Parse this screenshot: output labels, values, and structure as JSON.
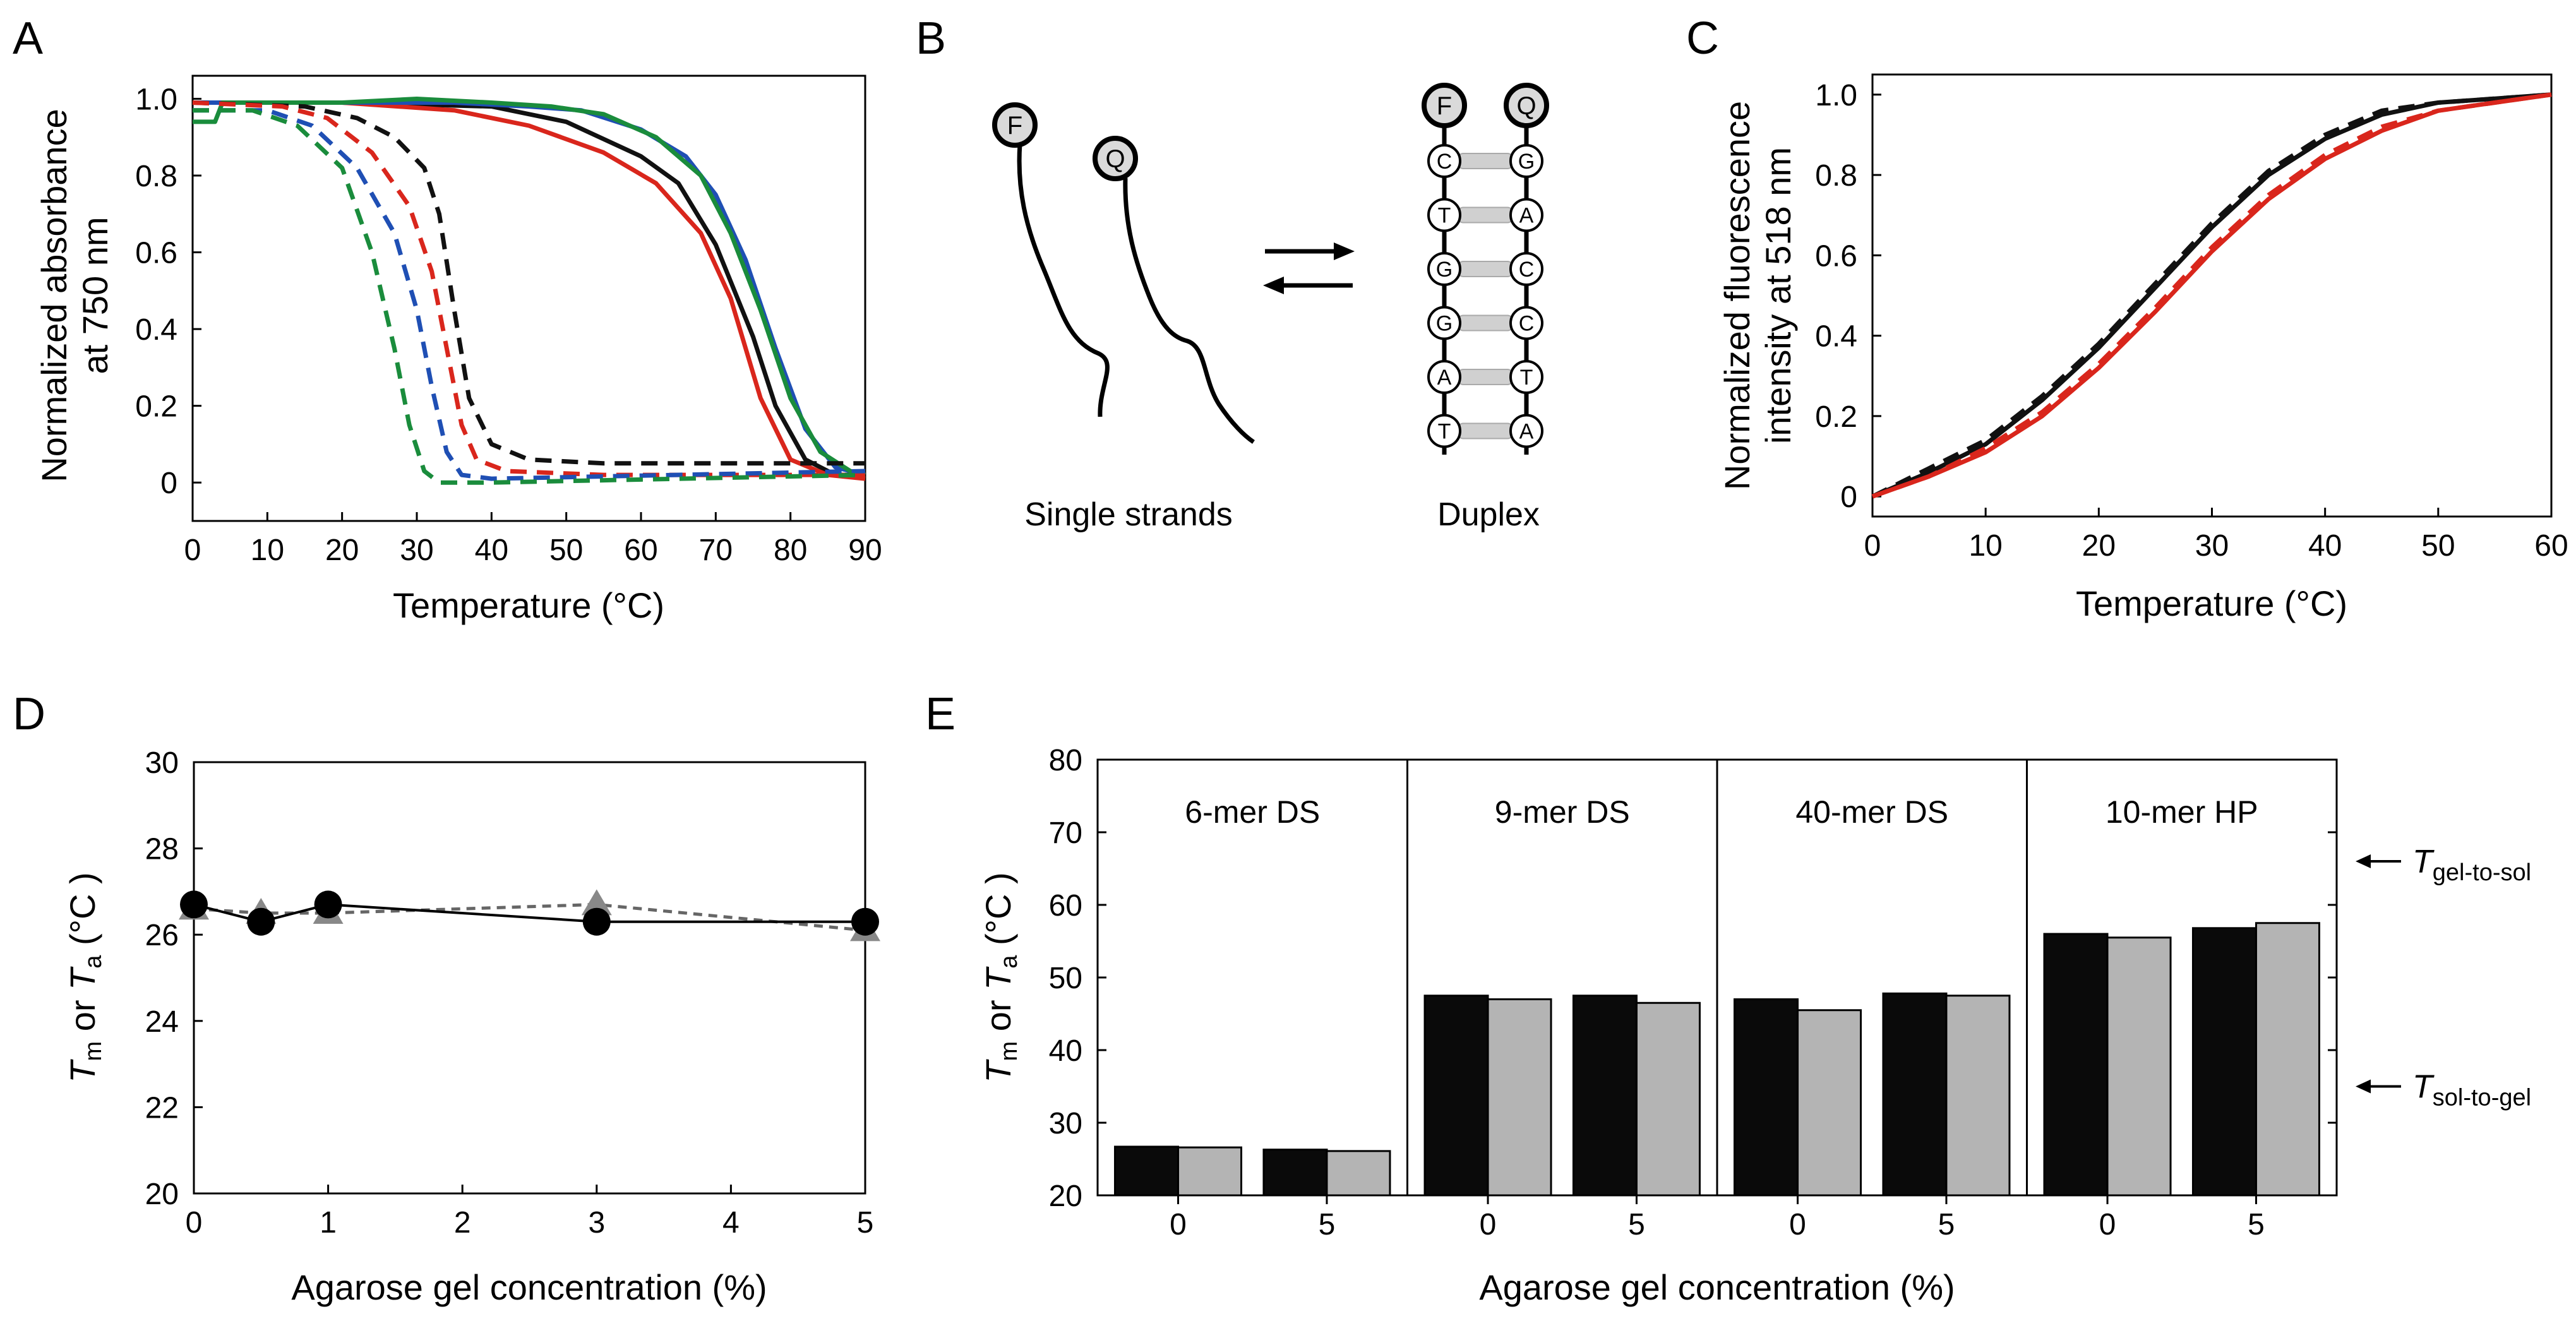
{
  "chart_data": [
    {
      "panel": "A",
      "type": "line",
      "xlabel": "Temperature (°C)",
      "ylabel": [
        "Normalized absorbance",
        "at 750 nm"
      ],
      "xlim": [
        0,
        90
      ],
      "ylim": [
        -0.1,
        1.06
      ],
      "xticks": [
        0,
        10,
        20,
        30,
        40,
        50,
        60,
        70,
        80,
        90
      ],
      "yticks": [
        0,
        0.2,
        0.4,
        0.6,
        0.8,
        1.0
      ],
      "ytick_labels": [
        "0",
        "0.2",
        "0.4",
        "0.6",
        "0.8",
        "1.0"
      ],
      "series": [
        {
          "name": "black solid",
          "color": "#111111",
          "dash": false,
          "points": [
            [
              0,
              0.99
            ],
            [
              20,
              0.99
            ],
            [
              40,
              0.98
            ],
            [
              50,
              0.94
            ],
            [
              60,
              0.85
            ],
            [
              65,
              0.78
            ],
            [
              70,
              0.62
            ],
            [
              75,
              0.38
            ],
            [
              78,
              0.2
            ],
            [
              82,
              0.06
            ],
            [
              86,
              0.02
            ],
            [
              90,
              0.02
            ]
          ]
        },
        {
          "name": "red solid",
          "color": "#d9261c",
          "dash": false,
          "points": [
            [
              0,
              0.99
            ],
            [
              20,
              0.99
            ],
            [
              35,
              0.97
            ],
            [
              45,
              0.93
            ],
            [
              55,
              0.86
            ],
            [
              62,
              0.78
            ],
            [
              68,
              0.65
            ],
            [
              72,
              0.48
            ],
            [
              76,
              0.22
            ],
            [
              80,
              0.06
            ],
            [
              85,
              0.02
            ],
            [
              90,
              0.01
            ]
          ]
        },
        {
          "name": "blue solid",
          "color": "#1f4fb4",
          "dash": false,
          "points": [
            [
              0,
              0.99
            ],
            [
              20,
              0.99
            ],
            [
              35,
              0.99
            ],
            [
              45,
              0.98
            ],
            [
              52,
              0.97
            ],
            [
              60,
              0.92
            ],
            [
              66,
              0.85
            ],
            [
              70,
              0.75
            ],
            [
              74,
              0.58
            ],
            [
              78,
              0.35
            ],
            [
              82,
              0.14
            ],
            [
              86,
              0.04
            ],
            [
              90,
              0.02
            ]
          ]
        },
        {
          "name": "green solid",
          "color": "#1a8c3c",
          "dash": false,
          "points": [
            [
              0,
              0.94
            ],
            [
              3,
              0.94
            ],
            [
              4,
              0.99
            ],
            [
              20,
              0.99
            ],
            [
              30,
              1.0
            ],
            [
              40,
              0.99
            ],
            [
              48,
              0.98
            ],
            [
              55,
              0.96
            ],
            [
              62,
              0.9
            ],
            [
              68,
              0.8
            ],
            [
              72,
              0.65
            ],
            [
              76,
              0.45
            ],
            [
              80,
              0.22
            ],
            [
              84,
              0.08
            ],
            [
              88,
              0.03
            ],
            [
              90,
              0.02
            ]
          ]
        },
        {
          "name": "black dashed",
          "color": "#111111",
          "dash": true,
          "points": [
            [
              0,
              0.99
            ],
            [
              15,
              0.98
            ],
            [
              22,
              0.95
            ],
            [
              27,
              0.9
            ],
            [
              31,
              0.82
            ],
            [
              33,
              0.7
            ],
            [
              35,
              0.45
            ],
            [
              37,
              0.22
            ],
            [
              40,
              0.1
            ],
            [
              45,
              0.06
            ],
            [
              55,
              0.05
            ],
            [
              70,
              0.05
            ],
            [
              90,
              0.05
            ]
          ]
        },
        {
          "name": "red dashed",
          "color": "#d9261c",
          "dash": true,
          "points": [
            [
              0,
              0.99
            ],
            [
              12,
              0.98
            ],
            [
              18,
              0.95
            ],
            [
              24,
              0.86
            ],
            [
              29,
              0.72
            ],
            [
              32,
              0.55
            ],
            [
              34,
              0.35
            ],
            [
              36,
              0.15
            ],
            [
              38,
              0.06
            ],
            [
              42,
              0.03
            ],
            [
              55,
              0.02
            ],
            [
              90,
              0.02
            ]
          ]
        },
        {
          "name": "blue dashed",
          "color": "#1f4fb4",
          "dash": true,
          "points": [
            [
              0,
              0.97
            ],
            [
              10,
              0.97
            ],
            [
              16,
              0.93
            ],
            [
              22,
              0.82
            ],
            [
              27,
              0.65
            ],
            [
              30,
              0.45
            ],
            [
              32,
              0.25
            ],
            [
              34,
              0.08
            ],
            [
              36,
              0.02
            ],
            [
              40,
              0.01
            ],
            [
              90,
              0.03
            ]
          ]
        },
        {
          "name": "green dashed",
          "color": "#1a8c3c",
          "dash": true,
          "points": [
            [
              0,
              0.97
            ],
            [
              8,
              0.97
            ],
            [
              14,
              0.93
            ],
            [
              20,
              0.82
            ],
            [
              24,
              0.6
            ],
            [
              27,
              0.35
            ],
            [
              29,
              0.15
            ],
            [
              31,
              0.03
            ],
            [
              33,
              0.0
            ],
            [
              40,
              0.0
            ],
            [
              90,
              0.02
            ]
          ]
        }
      ]
    },
    {
      "panel": "C",
      "type": "line",
      "xlabel": "Temperature (°C)",
      "ylabel": [
        "Normalized fluorescence",
        "intensity at 518 nm"
      ],
      "xlim": [
        0,
        60
      ],
      "ylim": [
        -0.05,
        1.05
      ],
      "xticks": [
        0,
        10,
        20,
        30,
        40,
        50,
        60
      ],
      "yticks": [
        0,
        0.2,
        0.4,
        0.6,
        0.8,
        1.0
      ],
      "ytick_labels": [
        "0",
        "0.2",
        "0.4",
        "0.6",
        "0.8",
        "1.0"
      ],
      "series": [
        {
          "name": "black solid",
          "color": "#111111",
          "dash": false,
          "points": [
            [
              0,
              0
            ],
            [
              5,
              0.06
            ],
            [
              10,
              0.13
            ],
            [
              15,
              0.24
            ],
            [
              20,
              0.37
            ],
            [
              25,
              0.52
            ],
            [
              30,
              0.67
            ],
            [
              35,
              0.8
            ],
            [
              40,
              0.89
            ],
            [
              45,
              0.95
            ],
            [
              50,
              0.98
            ],
            [
              55,
              0.99
            ],
            [
              60,
              1.0
            ]
          ]
        },
        {
          "name": "black dashed",
          "color": "#111111",
          "dash": true,
          "points": [
            [
              0,
              0
            ],
            [
              5,
              0.07
            ],
            [
              10,
              0.14
            ],
            [
              15,
              0.25
            ],
            [
              20,
              0.38
            ],
            [
              25,
              0.53
            ],
            [
              30,
              0.68
            ],
            [
              35,
              0.81
            ],
            [
              40,
              0.9
            ],
            [
              45,
              0.96
            ],
            [
              50,
              0.98
            ],
            [
              55,
              0.99
            ],
            [
              60,
              1.0
            ]
          ]
        },
        {
          "name": "red solid",
          "color": "#d9261c",
          "dash": false,
          "points": [
            [
              0,
              0
            ],
            [
              5,
              0.05
            ],
            [
              10,
              0.11
            ],
            [
              15,
              0.2
            ],
            [
              20,
              0.32
            ],
            [
              25,
              0.46
            ],
            [
              30,
              0.61
            ],
            [
              35,
              0.74
            ],
            [
              40,
              0.84
            ],
            [
              45,
              0.91
            ],
            [
              50,
              0.96
            ],
            [
              55,
              0.98
            ],
            [
              60,
              1.0
            ]
          ]
        },
        {
          "name": "red dashed",
          "color": "#d9261c",
          "dash": true,
          "points": [
            [
              0,
              0
            ],
            [
              5,
              0.05
            ],
            [
              10,
              0.12
            ],
            [
              15,
              0.21
            ],
            [
              20,
              0.33
            ],
            [
              25,
              0.47
            ],
            [
              30,
              0.62
            ],
            [
              35,
              0.75
            ],
            [
              40,
              0.85
            ],
            [
              45,
              0.92
            ],
            [
              50,
              0.96
            ],
            [
              55,
              0.98
            ],
            [
              60,
              1.0
            ]
          ]
        }
      ]
    },
    {
      "panel": "D",
      "type": "line",
      "xlabel": "Agarose gel concentration (%)",
      "ylabel_parts": [
        "T",
        "m",
        " or ",
        "T",
        "a",
        " (°C )"
      ],
      "xlim": [
        0,
        5
      ],
      "ylim": [
        20,
        30
      ],
      "xticks": [
        0,
        1,
        2,
        3,
        4,
        5
      ],
      "yticks": [
        20,
        22,
        24,
        26,
        28,
        30
      ],
      "series": [
        {
          "name": "Ta (triangles, dashed)",
          "color": "#888888",
          "marker": "triangle",
          "x": [
            0,
            0.5,
            1,
            3,
            5
          ],
          "y": [
            26.6,
            26.5,
            26.5,
            26.7,
            26.1
          ]
        },
        {
          "name": "Tm (circles, solid)",
          "color": "#000000",
          "marker": "circle",
          "x": [
            0,
            0.5,
            1,
            3,
            5
          ],
          "y": [
            26.7,
            26.3,
            26.7,
            26.3,
            26.3
          ]
        }
      ]
    },
    {
      "panel": "E",
      "type": "bar",
      "xlabel": "Agarose gel concentration (%)",
      "ylabel_parts": [
        "T",
        "m",
        " or ",
        "T",
        "a",
        " (°C )"
      ],
      "ylim": [
        20,
        80
      ],
      "yticks": [
        20,
        30,
        40,
        50,
        60,
        70,
        80
      ],
      "groups": [
        {
          "label": "6-mer DS",
          "categories": [
            "0",
            "5"
          ],
          "Tm": [
            26.7,
            26.3
          ],
          "Ta": [
            26.6,
            26.1
          ]
        },
        {
          "label": "9-mer DS",
          "categories": [
            "0",
            "5"
          ],
          "Tm": [
            47.5,
            47.5
          ],
          "Ta": [
            47.0,
            46.5
          ]
        },
        {
          "label": "40-mer DS",
          "categories": [
            "0",
            "5"
          ],
          "Tm": [
            47.0,
            47.8
          ],
          "Ta": [
            45.5,
            47.5
          ]
        },
        {
          "label": "10-mer HP",
          "categories": [
            "0",
            "5"
          ],
          "Tm": [
            56.0,
            56.8
          ],
          "Ta": [
            55.5,
            57.5
          ]
        }
      ],
      "bar_colors": {
        "Tm": "#0a0a0a",
        "Ta": "#b4b4b4"
      },
      "annotations": [
        {
          "T": "T",
          "sub": "gel-to-sol",
          "value": 66
        },
        {
          "T": "T",
          "sub": "sol-to-gel",
          "value": 35
        }
      ]
    }
  ],
  "panels": {
    "A": "A",
    "B": "B",
    "C": "C",
    "D": "D",
    "E": "E"
  },
  "schematic": {
    "single_label": "Single strands",
    "duplex_label": "Duplex",
    "fluorophore": "F",
    "quencher": "Q",
    "left_strand": [
      "C",
      "T",
      "G",
      "G",
      "A",
      "T"
    ],
    "right_strand": [
      "G",
      "A",
      "C",
      "C",
      "T",
      "A"
    ]
  }
}
